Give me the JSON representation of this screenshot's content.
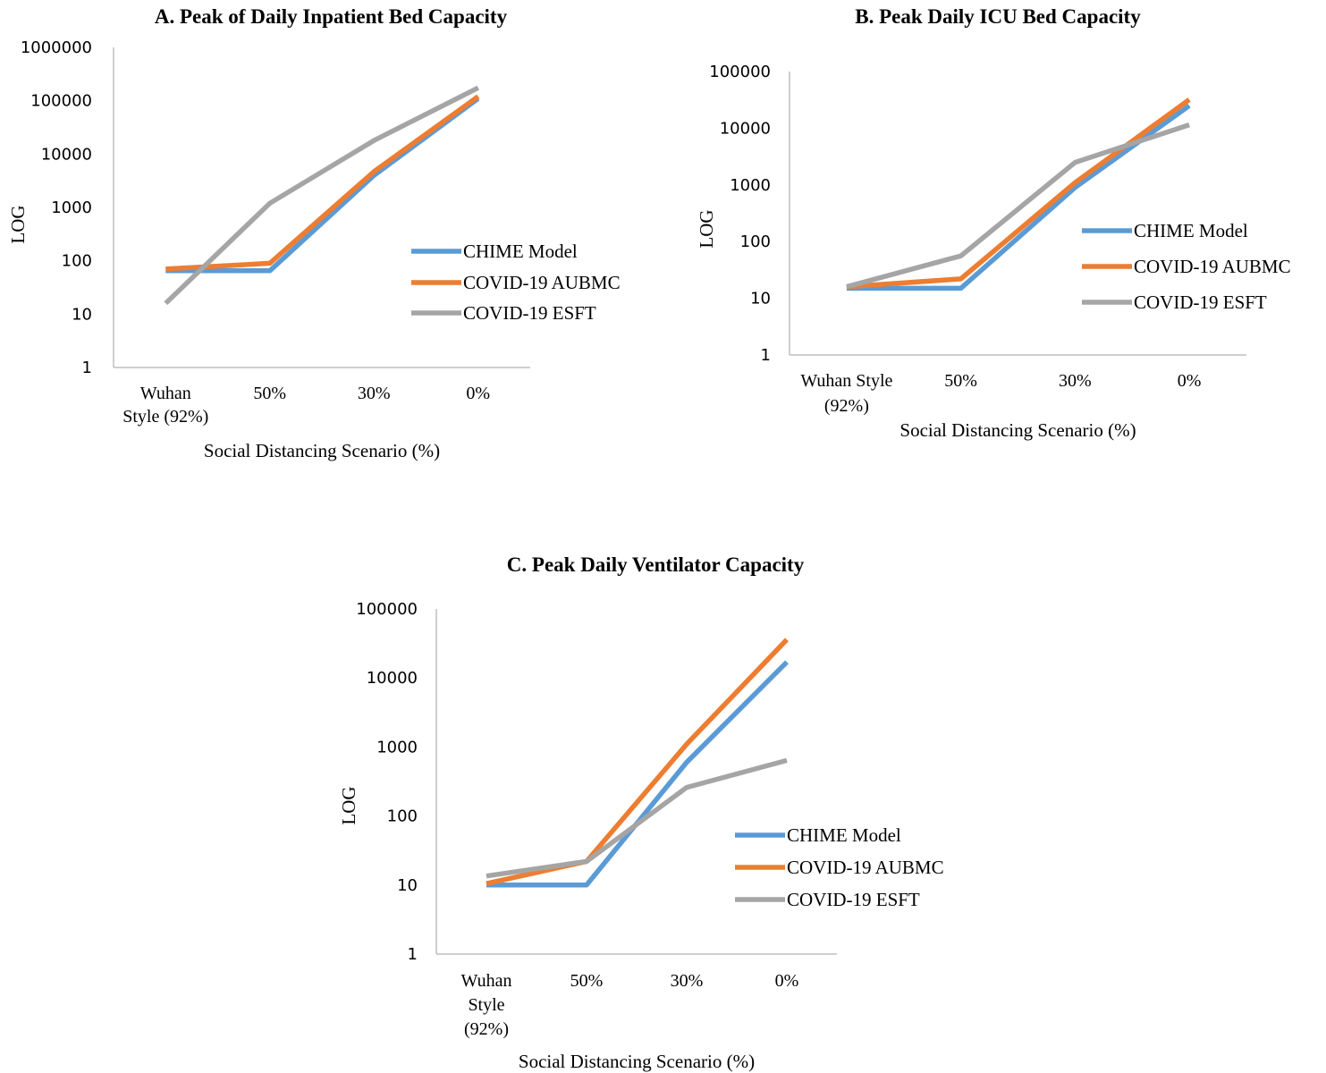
{
  "colors": {
    "CHIME Model": "#5b9bd5",
    "COVID-19 AUBMC": "#ed7d31",
    "COVID-19 ESFT": "#a5a5a5"
  },
  "chart_data": [
    {
      "type": "line",
      "title": "A. Peak of Daily Inpatient Bed Capacity",
      "xlabel": "Social Distancing Scenario (%)",
      "ylabel": "LOG",
      "yscale": "log",
      "ylim": [
        1,
        1000000
      ],
      "yticks": [
        "1",
        "10",
        "100",
        "1000",
        "10000",
        "100000",
        "1000000"
      ],
      "categories": [
        "Wuhan Style (92%)",
        "50%",
        "30%",
        "0%"
      ],
      "legend": "right",
      "grid": false,
      "series": [
        {
          "name": "CHIME Model",
          "values": [
            65,
            65,
            4000,
            110000
          ]
        },
        {
          "name": "COVID-19 AUBMC",
          "values": [
            70,
            90,
            4700,
            120000
          ]
        },
        {
          "name": "COVID-19 ESFT",
          "values": [
            16,
            1200,
            18000,
            175000
          ]
        }
      ]
    },
    {
      "type": "line",
      "title": "B. Peak Daily ICU Bed Capacity",
      "xlabel": "Social Distancing Scenario (%)",
      "ylabel": "LOG",
      "yscale": "log",
      "ylim": [
        1,
        100000
      ],
      "yticks": [
        "1",
        "10",
        "100",
        "1000",
        "10000",
        "100000"
      ],
      "categories": [
        "Wuhan Style (92%)",
        "50%",
        "30%",
        "0%"
      ],
      "legend": "right",
      "grid": false,
      "series": [
        {
          "name": "CHIME Model",
          "values": [
            15,
            15,
            900,
            25000
          ]
        },
        {
          "name": "COVID-19 AUBMC",
          "values": [
            16,
            22,
            1100,
            32000
          ]
        },
        {
          "name": "COVID-19 ESFT",
          "values": [
            16,
            56,
            2500,
            11500
          ]
        }
      ]
    },
    {
      "type": "line",
      "title": "C. Peak Daily Ventilator Capacity",
      "xlabel": "Social Distancing Scenario (%)",
      "ylabel": "LOG",
      "yscale": "log",
      "ylim": [
        1,
        100000
      ],
      "yticks": [
        "1",
        "10",
        "100",
        "1000",
        "10000",
        "100000"
      ],
      "categories": [
        "Wuhan Style (92%)",
        "50%",
        "30%",
        "0%"
      ],
      "legend": "right",
      "grid": false,
      "series": [
        {
          "name": "CHIME Model",
          "values": [
            10,
            10,
            600,
            17000
          ]
        },
        {
          "name": "COVID-19 AUBMC",
          "values": [
            10.5,
            22,
            1100,
            36000
          ]
        },
        {
          "name": "COVID-19 ESFT",
          "values": [
            13.5,
            22,
            260,
            640
          ]
        }
      ]
    }
  ]
}
